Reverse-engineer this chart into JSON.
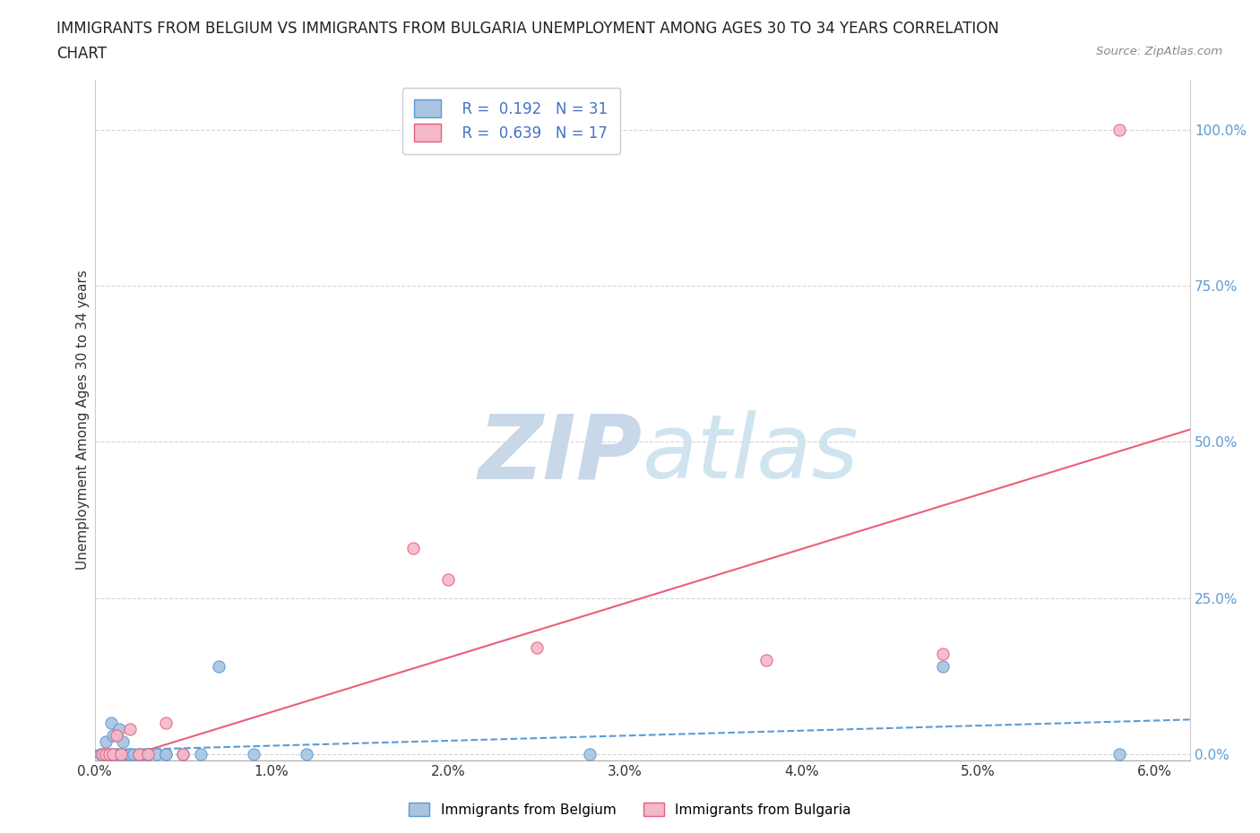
{
  "title_line1": "IMMIGRANTS FROM BELGIUM VS IMMIGRANTS FROM BULGARIA UNEMPLOYMENT AMONG AGES 30 TO 34 YEARS CORRELATION",
  "title_line2": "CHART",
  "source_text": "Source: ZipAtlas.com",
  "ylabel": "Unemployment Among Ages 30 to 34 years",
  "xlabel": "",
  "xlim": [
    0.0,
    0.062
  ],
  "ylim": [
    -0.01,
    1.08
  ],
  "xtick_labels": [
    "0.0%",
    "1.0%",
    "2.0%",
    "3.0%",
    "4.0%",
    "5.0%",
    "6.0%"
  ],
  "xtick_values": [
    0.0,
    0.01,
    0.02,
    0.03,
    0.04,
    0.05,
    0.06
  ],
  "ytick_labels": [
    "0.0%",
    "25.0%",
    "50.0%",
    "75.0%",
    "100.0%"
  ],
  "ytick_values": [
    0.0,
    0.25,
    0.5,
    0.75,
    1.0
  ],
  "belgium_color": "#a8c4e0",
  "belgium_edge_color": "#5b9bd5",
  "bulgaria_color": "#f4b8c8",
  "bulgaria_edge_color": "#e8607a",
  "belgium_R": 0.192,
  "belgium_N": 31,
  "bulgaria_R": 0.639,
  "bulgaria_N": 17,
  "belgium_scatter_x": [
    0.0003,
    0.0005,
    0.0006,
    0.0008,
    0.0009,
    0.001,
    0.001,
    0.0012,
    0.0013,
    0.0014,
    0.0015,
    0.0016,
    0.0018,
    0.002,
    0.002,
    0.0022,
    0.0025,
    0.0027,
    0.003,
    0.003,
    0.0035,
    0.004,
    0.004,
    0.005,
    0.006,
    0.007,
    0.009,
    0.012,
    0.028,
    0.048,
    0.058
  ],
  "belgium_scatter_y": [
    0.0,
    0.0,
    0.02,
    0.0,
    0.05,
    0.0,
    0.03,
    0.0,
    0.0,
    0.04,
    0.0,
    0.02,
    0.0,
    0.0,
    0.0,
    0.0,
    0.0,
    0.0,
    0.0,
    0.0,
    0.0,
    0.0,
    0.0,
    0.0,
    0.0,
    0.14,
    0.0,
    0.0,
    0.0,
    0.14,
    0.0
  ],
  "bulgaria_scatter_x": [
    0.0004,
    0.0006,
    0.0008,
    0.001,
    0.0012,
    0.0015,
    0.002,
    0.0025,
    0.003,
    0.004,
    0.005,
    0.018,
    0.02,
    0.025,
    0.038,
    0.048,
    0.058
  ],
  "bulgaria_scatter_y": [
    0.0,
    0.0,
    0.0,
    0.0,
    0.03,
    0.0,
    0.04,
    0.0,
    0.0,
    0.05,
    0.0,
    0.33,
    0.28,
    0.17,
    0.15,
    0.16,
    1.0
  ],
  "belgium_trend_x": [
    0.0,
    0.062
  ],
  "belgium_trend_y": [
    0.005,
    0.055
  ],
  "bulgaria_trend_x": [
    0.0,
    0.062
  ],
  "bulgaria_trend_y": [
    -0.02,
    0.52
  ],
  "watermark_zip": "ZIP",
  "watermark_atlas": "atlas",
  "watermark_color": "#c8d8e8",
  "grid_color": "#d5d5d5",
  "background_color": "#ffffff",
  "title_fontsize": 12,
  "axis_label_fontsize": 11,
  "tick_fontsize": 11,
  "legend_fontsize": 12
}
